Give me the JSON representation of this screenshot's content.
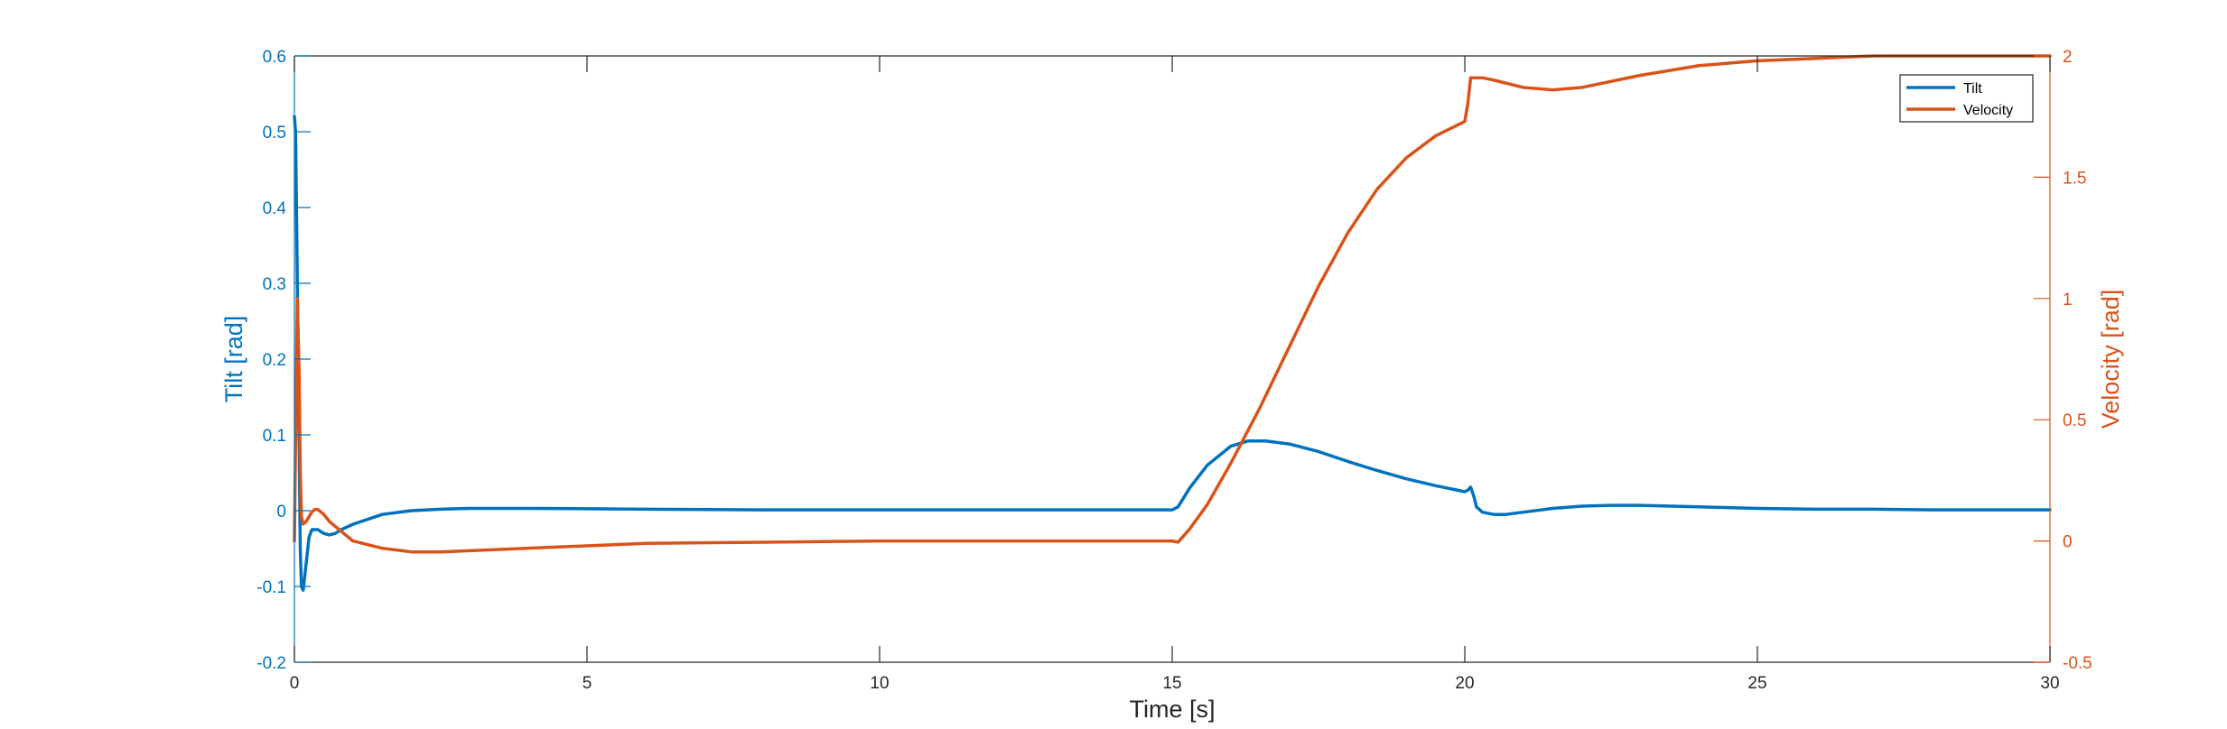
{
  "colors": {
    "tilt": "#0072BD",
    "velocity": "#D95319",
    "axis": "#262626"
  },
  "chart_data": {
    "type": "line",
    "title": "",
    "xlabel": "Time [s]",
    "ylabel_left": "Tilt [rad]",
    "ylabel_right": "Velocity [rad]",
    "xlim": [
      0,
      30
    ],
    "ylim_left": [
      -0.2,
      0.6
    ],
    "ylim_right": [
      -0.5,
      2
    ],
    "xticks": [
      0,
      5,
      10,
      15,
      20,
      25,
      30
    ],
    "xtick_labels": [
      "0",
      "5",
      "10",
      "15",
      "20",
      "25",
      "30"
    ],
    "yticks_left": [
      -0.2,
      -0.1,
      0,
      0.1,
      0.2,
      0.3,
      0.4,
      0.5,
      0.6
    ],
    "ytick_labels_left": [
      "-0.2",
      "-0.1",
      "0",
      "0.1",
      "0.2",
      "0.3",
      "0.4",
      "0.5",
      "0.6"
    ],
    "yticks_right": [
      -0.5,
      0,
      0.5,
      1,
      1.5,
      2
    ],
    "ytick_labels_right": [
      "-0.5",
      "0",
      "0.5",
      "1",
      "1.5",
      "2"
    ],
    "grid": false,
    "legend_position": "top-right",
    "series": [
      {
        "name": "Tilt",
        "axis": "left",
        "x": [
          0,
          0.02,
          0.05,
          0.08,
          0.1,
          0.12,
          0.15,
          0.2,
          0.25,
          0.3,
          0.4,
          0.5,
          0.6,
          0.7,
          0.8,
          1.0,
          1.5,
          2.0,
          2.5,
          3.0,
          4.0,
          6.0,
          8.0,
          10.0,
          12.0,
          14.0,
          15.0,
          15.1,
          15.3,
          15.6,
          16.0,
          16.3,
          16.6,
          17.0,
          17.5,
          18.0,
          18.5,
          19.0,
          19.5,
          20.0,
          20.05,
          20.1,
          20.15,
          20.2,
          20.3,
          20.5,
          20.7,
          21.0,
          21.5,
          22.0,
          22.5,
          23.0,
          24.0,
          25.0,
          26.0,
          27.0,
          28.0,
          29.0,
          30.0
        ],
        "y": [
          0.52,
          0.5,
          0.3,
          0.1,
          -0.05,
          -0.1,
          -0.105,
          -0.07,
          -0.035,
          -0.025,
          -0.025,
          -0.03,
          -0.032,
          -0.03,
          -0.025,
          -0.018,
          -0.005,
          0.0,
          0.002,
          0.003,
          0.003,
          0.002,
          0.001,
          0.001,
          0.001,
          0.001,
          0.001,
          0.005,
          0.03,
          0.06,
          0.085,
          0.092,
          0.092,
          0.088,
          0.078,
          0.065,
          0.053,
          0.042,
          0.033,
          0.025,
          0.027,
          0.031,
          0.02,
          0.005,
          -0.002,
          -0.005,
          -0.005,
          -0.002,
          0.003,
          0.006,
          0.007,
          0.007,
          0.005,
          0.003,
          0.002,
          0.002,
          0.001,
          0.001,
          0.001
        ]
      },
      {
        "name": "Velocity",
        "axis": "right",
        "x": [
          0,
          0.02,
          0.05,
          0.08,
          0.1,
          0.12,
          0.15,
          0.2,
          0.25,
          0.3,
          0.35,
          0.4,
          0.5,
          0.6,
          0.8,
          1.0,
          1.5,
          2.0,
          2.5,
          3.0,
          4.0,
          5.0,
          6.0,
          8.0,
          10.0,
          12.0,
          14.0,
          15.0,
          15.1,
          15.3,
          15.6,
          16.0,
          16.5,
          17.0,
          17.5,
          18.0,
          18.5,
          19.0,
          19.5,
          20.0,
          20.05,
          20.1,
          20.3,
          20.5,
          21.0,
          21.5,
          22.0,
          23.0,
          24.0,
          25.0,
          26.0,
          27.0,
          28.0,
          29.0,
          30.0
        ],
        "y": [
          0.0,
          0.4,
          1.0,
          0.7,
          0.3,
          0.1,
          0.07,
          0.08,
          0.1,
          0.12,
          0.13,
          0.13,
          0.11,
          0.08,
          0.04,
          0.0,
          -0.03,
          -0.045,
          -0.045,
          -0.04,
          -0.03,
          -0.02,
          -0.01,
          -0.005,
          0.0,
          0.0,
          0.0,
          0.0,
          -0.005,
          0.05,
          0.15,
          0.32,
          0.55,
          0.8,
          1.05,
          1.27,
          1.45,
          1.58,
          1.67,
          1.73,
          1.8,
          1.91,
          1.91,
          1.9,
          1.87,
          1.86,
          1.87,
          1.92,
          1.96,
          1.98,
          1.99,
          2.0,
          2.0,
          2.0,
          2.0
        ]
      }
    ]
  }
}
